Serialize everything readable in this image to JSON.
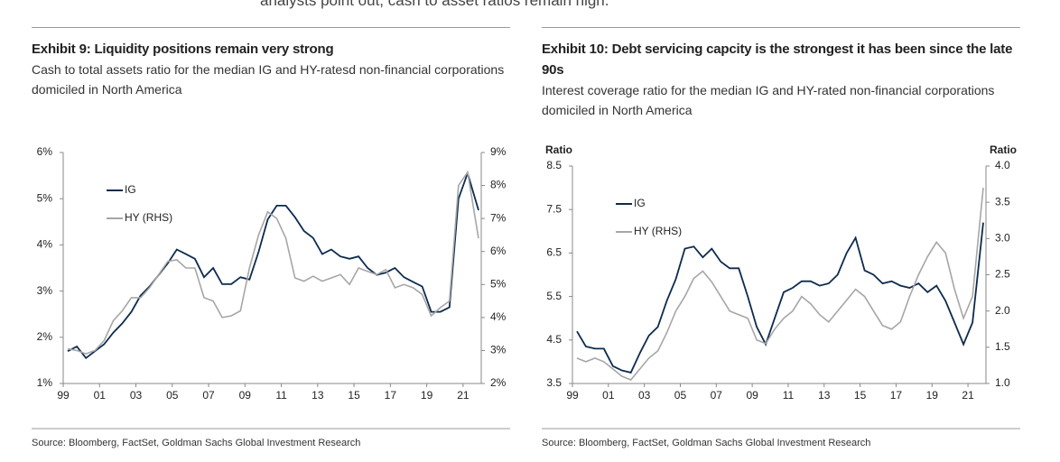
{
  "intro_text": "analysts point out, cash to asset ratios remain high.",
  "chart_data": [
    {
      "type": "line",
      "title": "Exhibit 9: Liquidity positions remain very strong",
      "subtitle": "Cash to total assets ratio for the median IG and HY-ratesd non-financial corporations domiciled in North America",
      "source": "Source: Bloomberg, FactSet, Goldman Sachs Global Investment Research",
      "x": [
        1999.25,
        1999.75,
        2000.25,
        2000.75,
        2001.25,
        2001.75,
        2002.25,
        2002.75,
        2003.25,
        2003.75,
        2004.25,
        2004.75,
        2005.25,
        2005.75,
        2006.25,
        2006.75,
        2007.25,
        2007.75,
        2008.25,
        2008.75,
        2009.25,
        2009.75,
        2010.25,
        2010.75,
        2011.25,
        2011.75,
        2012.25,
        2012.75,
        2013.25,
        2013.75,
        2014.25,
        2014.75,
        2015.25,
        2015.75,
        2016.25,
        2016.75,
        2017.25,
        2017.75,
        2018.25,
        2018.75,
        2019.25,
        2019.75,
        2020.25,
        2020.75,
        2021.25,
        2021.85
      ],
      "series": [
        {
          "name": "IG",
          "color": "#0d2b4e",
          "values": [
            1.7,
            1.8,
            1.55,
            1.7,
            1.85,
            2.1,
            2.3,
            2.55,
            2.9,
            3.1,
            3.35,
            3.6,
            3.9,
            3.8,
            3.7,
            3.3,
            3.5,
            3.15,
            3.15,
            3.3,
            3.25,
            3.85,
            4.55,
            4.85,
            4.85,
            4.6,
            4.3,
            4.15,
            3.8,
            3.9,
            3.75,
            3.7,
            3.75,
            3.5,
            3.35,
            3.4,
            3.5,
            3.3,
            3.2,
            3.1,
            2.55,
            2.55,
            2.65,
            5.0,
            5.55,
            4.75
          ]
        },
        {
          "name": "HY (RHS)",
          "color": "#a6a6a6",
          "axis": "y2",
          "values": [
            3.05,
            3.0,
            2.9,
            3.0,
            3.3,
            3.9,
            4.2,
            4.6,
            4.6,
            4.9,
            5.3,
            5.7,
            5.75,
            5.5,
            5.5,
            4.6,
            4.5,
            4.0,
            4.05,
            4.2,
            5.5,
            6.5,
            7.2,
            7.0,
            6.4,
            5.2,
            5.1,
            5.25,
            5.1,
            5.2,
            5.3,
            5.0,
            5.5,
            5.4,
            5.3,
            5.45,
            4.9,
            5.0,
            4.9,
            4.7,
            4.05,
            4.3,
            4.5,
            8.0,
            8.4,
            6.4
          ]
        }
      ],
      "xlim": [
        1999,
        2022
      ],
      "xticks": [
        {
          "value": 1999,
          "label": "99"
        },
        {
          "value": 2001,
          "label": "01"
        },
        {
          "value": 2003,
          "label": "03"
        },
        {
          "value": 2005,
          "label": "05"
        },
        {
          "value": 2007,
          "label": "07"
        },
        {
          "value": 2009,
          "label": "09"
        },
        {
          "value": 2011,
          "label": "11"
        },
        {
          "value": 2013,
          "label": "13"
        },
        {
          "value": 2015,
          "label": "15"
        },
        {
          "value": 2017,
          "label": "17"
        },
        {
          "value": 2019,
          "label": "19"
        },
        {
          "value": 2021,
          "label": "21"
        }
      ],
      "ylim": [
        1,
        6
      ],
      "yticks": [
        {
          "value": 1,
          "label": "1%"
        },
        {
          "value": 2,
          "label": "2%"
        },
        {
          "value": 3,
          "label": "3%"
        },
        {
          "value": 4,
          "label": "4%"
        },
        {
          "value": 5,
          "label": "5%"
        },
        {
          "value": 6,
          "label": "6%"
        }
      ],
      "y2lim": [
        2,
        9
      ],
      "y2ticks": [
        {
          "value": 2,
          "label": "2%"
        },
        {
          "value": 3,
          "label": "3%"
        },
        {
          "value": 4,
          "label": "4%"
        },
        {
          "value": 5,
          "label": "5%"
        },
        {
          "value": 6,
          "label": "6%"
        },
        {
          "value": 7,
          "label": "7%"
        },
        {
          "value": 8,
          "label": "8%"
        },
        {
          "value": 9,
          "label": "9%"
        }
      ],
      "grid": false,
      "legend": "upper left"
    },
    {
      "type": "line",
      "title": "Exhibit 10: Debt servicing capcity is the strongest it has been since the late 90s",
      "subtitle": "Interest coverage ratio for the median IG and HY-rated non-financial corporations domiciled in North America",
      "source": "Source: Bloomberg, FactSet, Goldman Sachs Global Investment Research",
      "ylabel": "Ratio",
      "y2label": "Ratio",
      "x": [
        1999.25,
        1999.75,
        2000.25,
        2000.75,
        2001.25,
        2001.75,
        2002.25,
        2002.75,
        2003.25,
        2003.75,
        2004.25,
        2004.75,
        2005.25,
        2005.75,
        2006.25,
        2006.75,
        2007.25,
        2007.75,
        2008.25,
        2008.75,
        2009.25,
        2009.75,
        2010.25,
        2010.75,
        2011.25,
        2011.75,
        2012.25,
        2012.75,
        2013.25,
        2013.75,
        2014.25,
        2014.75,
        2015.25,
        2015.75,
        2016.25,
        2016.75,
        2017.25,
        2017.75,
        2018.25,
        2018.75,
        2019.25,
        2019.75,
        2020.25,
        2020.75,
        2021.25,
        2021.85
      ],
      "series": [
        {
          "name": "IG",
          "color": "#0d2b4e",
          "values": [
            4.7,
            4.35,
            4.3,
            4.3,
            3.9,
            3.8,
            3.75,
            4.2,
            4.6,
            4.8,
            5.4,
            5.9,
            6.6,
            6.65,
            6.4,
            6.6,
            6.3,
            6.15,
            6.15,
            5.5,
            4.8,
            4.4,
            5.0,
            5.6,
            5.7,
            5.85,
            5.85,
            5.75,
            5.8,
            6.0,
            6.5,
            6.85,
            6.1,
            6.0,
            5.8,
            5.85,
            5.75,
            5.7,
            5.8,
            5.6,
            5.75,
            5.4,
            4.9,
            4.4,
            4.9,
            7.2
          ]
        },
        {
          "name": "HY (RHS)",
          "color": "#a6a6a6",
          "axis": "y2",
          "values": [
            1.35,
            1.3,
            1.35,
            1.3,
            1.2,
            1.1,
            1.05,
            1.2,
            1.35,
            1.45,
            1.7,
            2.0,
            2.2,
            2.45,
            2.55,
            2.4,
            2.2,
            2.0,
            1.95,
            1.9,
            1.6,
            1.55,
            1.75,
            1.9,
            2.0,
            2.2,
            2.1,
            1.95,
            1.85,
            2.0,
            2.15,
            2.3,
            2.2,
            2.0,
            1.8,
            1.75,
            1.85,
            2.2,
            2.5,
            2.75,
            2.95,
            2.8,
            2.3,
            1.9,
            2.2,
            3.7
          ]
        }
      ],
      "xlim": [
        1999,
        2022
      ],
      "xticks": [
        {
          "value": 1999,
          "label": "99"
        },
        {
          "value": 2001,
          "label": "01"
        },
        {
          "value": 2003,
          "label": "03"
        },
        {
          "value": 2005,
          "label": "05"
        },
        {
          "value": 2007,
          "label": "07"
        },
        {
          "value": 2009,
          "label": "09"
        },
        {
          "value": 2011,
          "label": "11"
        },
        {
          "value": 2013,
          "label": "13"
        },
        {
          "value": 2015,
          "label": "15"
        },
        {
          "value": 2017,
          "label": "17"
        },
        {
          "value": 2019,
          "label": "19"
        },
        {
          "value": 2021,
          "label": "21"
        }
      ],
      "ylim": [
        3.5,
        8.5
      ],
      "yticks": [
        3.5,
        4.5,
        5.5,
        6.5,
        7.5,
        8.5
      ],
      "y2lim": [
        1,
        4
      ],
      "y2ticks": [
        {
          "value": 1,
          "label": "1.0"
        },
        1.5,
        {
          "value": 2,
          "label": "2.0"
        },
        2.5,
        {
          "value": 3,
          "label": "3.0"
        },
        3.5,
        {
          "value": 4,
          "label": "4.0"
        }
      ],
      "grid": false,
      "legend": "upper left"
    }
  ]
}
